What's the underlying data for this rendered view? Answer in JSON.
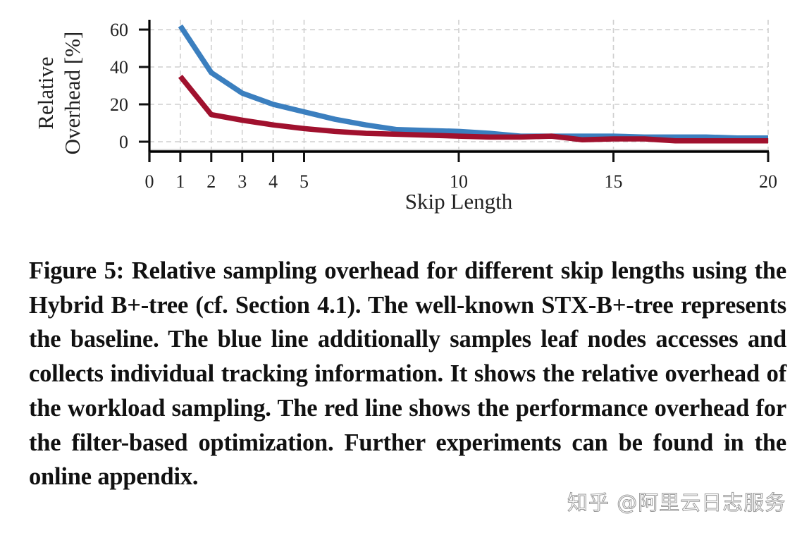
{
  "chart_data": {
    "type": "line",
    "title": "",
    "xlabel": "Skip Length",
    "ylabel": "Relative Overhead [%]",
    "ylabel_lines": [
      "Relative",
      "Overhead [%]"
    ],
    "xlim": [
      0,
      20
    ],
    "ylim": [
      -5,
      65
    ],
    "x_ticks": [
      0,
      1,
      2,
      3,
      4,
      5,
      10,
      15,
      20
    ],
    "y_ticks": [
      0,
      20,
      40,
      60
    ],
    "grid": true,
    "legend": null,
    "x": [
      1,
      2,
      3,
      4,
      5,
      6,
      7,
      8,
      9,
      10,
      11,
      12,
      13,
      14,
      15,
      16,
      17,
      18,
      19,
      20
    ],
    "series": [
      {
        "name": "Workload sampling (blue line)",
        "color": "#3b7fbf",
        "values": [
          62,
          37,
          26,
          20,
          16,
          12,
          9,
          6.5,
          6,
          5.5,
          4.5,
          3,
          3,
          3,
          3,
          2.5,
          2.5,
          2.5,
          2,
          2
        ]
      },
      {
        "name": "Filter-based optimization (red line)",
        "color": "#a0112e",
        "values": [
          35,
          14.5,
          11.5,
          9,
          7,
          5.5,
          4.5,
          4,
          3.5,
          3,
          2.5,
          2.5,
          3,
          1,
          1.5,
          1.5,
          0.5,
          0.5,
          0.5,
          0.5
        ]
      }
    ]
  },
  "caption": {
    "text": "Figure 5: Relative sampling overhead for different skip lengths using the Hybrid B+-tree (cf. Section 4.1). The well-known STX-B+-tree represents the baseline. The blue line additionally samples leaf nodes accesses and collects individual tracking information. It shows the relative overhead of the workload sampling. The red line shows the performance overhead for the filter-based optimization. Further experiments can be found in the online appendix."
  },
  "watermark": {
    "text": "知乎 @阿里云日志服务"
  }
}
